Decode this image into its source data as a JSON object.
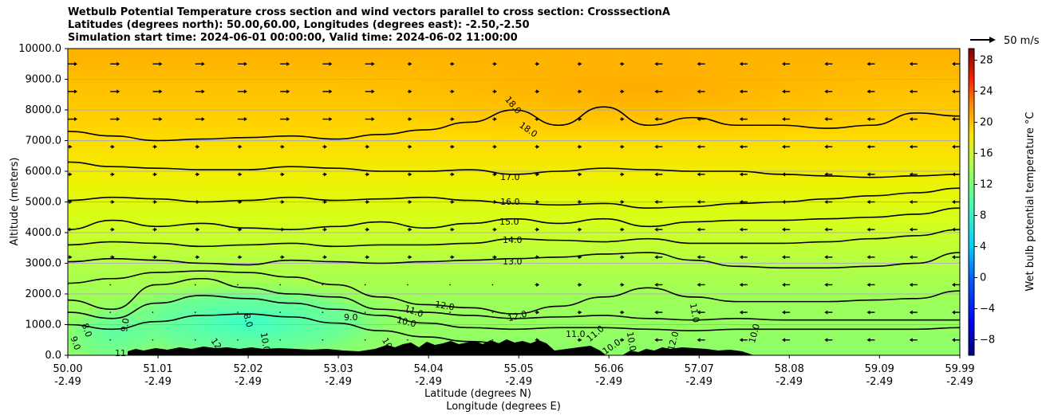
{
  "chart_data": {
    "type": "contour",
    "title_lines": [
      "Wetbulb Potential Temperature cross section and wind vectors parallel to cross section: CrosssectionA",
      "Latitudes (degrees north): 50.00,60.00, Longitudes (degrees east): -2.50,-2.50",
      "Simulation start time: 2024-06-01 00:00:00, Valid time: 2024-06-02 11:00:00"
    ],
    "ylabel": "Altitude (meters)",
    "xlabel_lines": [
      "Latitude (degrees N)",
      "Longitude (degrees E)"
    ],
    "ylim": [
      0,
      10000
    ],
    "yticks": [
      0,
      1000,
      2000,
      3000,
      4000,
      5000,
      6000,
      7000,
      8000,
      9000,
      10000
    ],
    "ytick_labels": [
      "0.0",
      "1000.0",
      "2000.0",
      "3000.0",
      "4000.0",
      "5000.0",
      "6000.0",
      "7000.0",
      "8000.0",
      "9000.0",
      "10000.0"
    ],
    "xlim": [
      50.0,
      59.99
    ],
    "xticks": [
      50.0,
      51.01,
      52.02,
      53.03,
      54.04,
      55.05,
      56.06,
      57.07,
      58.08,
      59.09,
      59.99
    ],
    "xtick_lat_labels": [
      "50.00",
      "51.01",
      "52.02",
      "53.03",
      "54.04",
      "55.05",
      "56.06",
      "57.07",
      "58.08",
      "59.09",
      "59.99"
    ],
    "xtick_lon_labels": [
      "-2.49",
      "-2.49",
      "-2.49",
      "-2.49",
      "-2.49",
      "-2.49",
      "-2.49",
      "-2.49",
      "-2.49",
      "-2.49",
      "-2.49"
    ],
    "grid": "horizontal",
    "colorbar": {
      "label": "Wet bulb potential temperature $^\\circ$C",
      "label_display": "Wet bulb potential temperature °C",
      "range": [
        -10,
        29.5
      ],
      "ticks": [
        -8,
        -4,
        0,
        4,
        8,
        12,
        16,
        20,
        24,
        28
      ],
      "tick_labels": [
        "−8",
        "−4",
        "0",
        "4",
        "8",
        "12",
        "16",
        "20",
        "24",
        "28"
      ]
    },
    "quiver_key": {
      "speed": 50,
      "label": "50 m/s"
    },
    "contours": [
      {
        "level": 13.0,
        "label": "13.0",
        "x": [
          50.0,
          50.5,
          51.0,
          51.5,
          52.0,
          52.5,
          53.0,
          53.5,
          54.0,
          54.5,
          55.0,
          55.5,
          56.0,
          56.5,
          57.0,
          57.5,
          58.0,
          58.5,
          59.0,
          59.5,
          59.99
        ],
        "y": [
          3050,
          3150,
          3100,
          3000,
          2950,
          3100,
          3050,
          3000,
          3050,
          3100,
          3150,
          3200,
          3300,
          3350,
          3100,
          2900,
          2850,
          2850,
          2900,
          3000,
          3350
        ]
      },
      {
        "level": 14.0,
        "label": "14.0",
        "x": [
          50.0,
          50.5,
          51.0,
          51.5,
          52.0,
          52.5,
          53.0,
          53.5,
          54.0,
          54.5,
          55.0,
          55.5,
          56.0,
          56.5,
          57.0,
          57.5,
          58.0,
          58.5,
          59.0,
          59.5,
          59.99
        ],
        "y": [
          3600,
          3700,
          3650,
          3550,
          3600,
          3650,
          3550,
          3600,
          3600,
          3650,
          3800,
          3750,
          3700,
          3800,
          3650,
          3650,
          3650,
          3700,
          3800,
          3900,
          4100
        ]
      },
      {
        "level": 15.0,
        "label": "15.0",
        "x": [
          50.0,
          50.5,
          51.0,
          51.5,
          52.0,
          52.5,
          53.0,
          53.5,
          54.0,
          54.5,
          55.0,
          55.5,
          56.0,
          56.5,
          57.0,
          57.5,
          58.0,
          58.5,
          59.0,
          59.5,
          59.99
        ],
        "y": [
          4100,
          4400,
          4200,
          4300,
          4150,
          4100,
          4200,
          4350,
          4150,
          4300,
          4450,
          4300,
          4450,
          4200,
          4350,
          4400,
          4400,
          4450,
          4500,
          4600,
          4800
        ]
      },
      {
        "level": 16.0,
        "label": "16.0",
        "x": [
          50.0,
          50.5,
          51.0,
          51.5,
          52.0,
          52.5,
          53.0,
          53.5,
          54.0,
          54.5,
          55.0,
          55.5,
          56.0,
          56.5,
          57.0,
          57.5,
          58.0,
          58.5,
          59.0,
          59.5,
          59.99
        ],
        "y": [
          5050,
          5150,
          5100,
          5000,
          5050,
          5150,
          5050,
          5100,
          5150,
          5050,
          4950,
          4900,
          4950,
          4800,
          4850,
          4950,
          5000,
          5100,
          5200,
          5300,
          5450
        ]
      },
      {
        "level": 17.0,
        "label": "17.0",
        "x": [
          50.0,
          50.5,
          51.0,
          51.5,
          52.0,
          52.5,
          53.0,
          53.5,
          54.0,
          54.5,
          55.0,
          55.5,
          56.0,
          56.5,
          57.0,
          57.5,
          58.0,
          58.5,
          59.0,
          59.5,
          59.99
        ],
        "y": [
          6300,
          6150,
          6100,
          6050,
          6050,
          6150,
          6100,
          6000,
          6000,
          6050,
          5900,
          6000,
          6100,
          6050,
          6000,
          6000,
          5900,
          5850,
          5800,
          5850,
          5900
        ]
      },
      {
        "level": 18.0,
        "label": "18.0",
        "x": [
          50.0,
          50.5,
          51.0,
          51.5,
          52.0,
          52.5,
          53.0,
          53.5,
          54.0,
          54.5,
          55.0,
          55.5,
          56.0,
          56.5,
          57.0,
          57.5,
          58.0,
          58.5,
          59.0,
          59.5,
          59.99
        ],
        "y": [
          7300,
          7150,
          7000,
          7050,
          7100,
          7150,
          7050,
          7200,
          7350,
          7600,
          8000,
          7500,
          8100,
          7500,
          7750,
          7500,
          7500,
          7400,
          7500,
          7900,
          7800
        ]
      },
      {
        "level": 12.0,
        "label": "12.0",
        "x": [
          50.0,
          50.5,
          51.0,
          51.5,
          52.0,
          52.5,
          53.0,
          53.5,
          54.0,
          54.5,
          55.0,
          55.5,
          56.0,
          56.5,
          57.0,
          57.5,
          58.0,
          58.5,
          59.0,
          59.5,
          59.99
        ],
        "y": [
          2350,
          2500,
          2700,
          2750,
          2700,
          2550,
          2300,
          1900,
          1650,
          1550,
          1350,
          1600,
          1900,
          2200,
          1900,
          1750,
          1750,
          1750,
          1800,
          1850,
          2100
        ]
      },
      {
        "level": 11.0,
        "label": "11.0",
        "x": [
          50.0,
          50.5,
          51.0,
          51.5,
          52.0,
          52.5,
          53.0,
          53.5,
          54.0,
          54.5,
          55.0,
          55.5,
          56.0,
          56.5,
          57.0,
          57.5,
          58.0,
          58.5,
          59.0,
          59.5,
          59.99
        ],
        "y": [
          1800,
          1500,
          2300,
          2500,
          2200,
          2000,
          1900,
          1500,
          1400,
          1300,
          1200,
          1250,
          1300,
          1200,
          1150,
          1200,
          1150,
          1150,
          1150,
          1150,
          1150
        ]
      },
      {
        "level": 10.0,
        "label": "10.0",
        "x": [
          50.0,
          50.5,
          51.0,
          51.5,
          52.0,
          52.5,
          53.0,
          53.5,
          54.0,
          54.5,
          55.0,
          55.5,
          56.0,
          56.5,
          57.0,
          57.5,
          58.0,
          58.5,
          59.0,
          59.5,
          59.99
        ],
        "y": [
          1400,
          1200,
          1700,
          1950,
          1850,
          1700,
          1500,
          1300,
          1050,
          900,
          850,
          900,
          900,
          850,
          800,
          850,
          850,
          850,
          850,
          850,
          900
        ]
      },
      {
        "level": 9.0,
        "label": "9.0",
        "x": [
          50.0,
          50.5,
          51.0,
          51.5,
          52.0,
          52.5,
          53.0,
          53.5,
          54.0,
          54.5,
          55.0
        ],
        "y": [
          1000,
          850,
          1100,
          1300,
          1350,
          1250,
          1050,
          800,
          600,
          450,
          350
        ]
      }
    ],
    "annotations": [
      "18.0",
      "18.0",
      "17.0",
      "16.0",
      "15.0",
      "14.0",
      "13.0",
      "12.0",
      "12.0",
      "11.0",
      "10.0",
      "9.0",
      "11.0",
      "11.0",
      "11.0",
      "12.0",
      "10.0",
      "10.0",
      "9.0",
      "8.0",
      "8.0",
      "9.0",
      "12.0",
      "11",
      "10.0",
      "10.0",
      "10.0"
    ]
  }
}
